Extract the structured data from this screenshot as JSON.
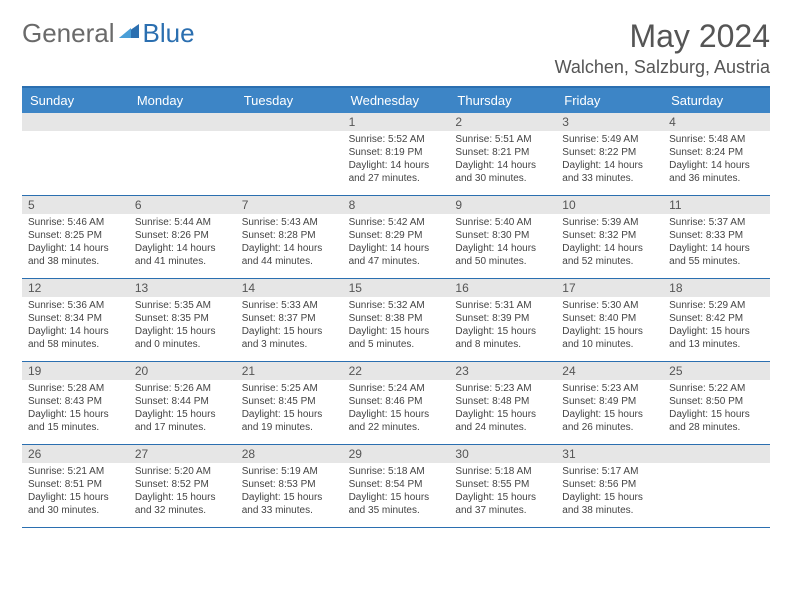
{
  "logo": {
    "general": "General",
    "blue": "Blue"
  },
  "title": "May 2024",
  "location": "Walchen, Salzburg, Austria",
  "colors": {
    "header_bg": "#3d85c6",
    "border": "#2b6fb0",
    "daynum_bg": "#e6e6e6",
    "logo_gray": "#6a6a6a",
    "logo_blue": "#2b6fb0"
  },
  "day_names": [
    "Sunday",
    "Monday",
    "Tuesday",
    "Wednesday",
    "Thursday",
    "Friday",
    "Saturday"
  ],
  "prefix": {
    "sunrise": "Sunrise: ",
    "sunset": "Sunset: ",
    "daylight": "Daylight: "
  },
  "weeks": [
    [
      {
        "n": "",
        "empty": true
      },
      {
        "n": "",
        "empty": true
      },
      {
        "n": "",
        "empty": true
      },
      {
        "n": "1",
        "sr": "5:52 AM",
        "ss": "8:19 PM",
        "dl": "14 hours and 27 minutes."
      },
      {
        "n": "2",
        "sr": "5:51 AM",
        "ss": "8:21 PM",
        "dl": "14 hours and 30 minutes."
      },
      {
        "n": "3",
        "sr": "5:49 AM",
        "ss": "8:22 PM",
        "dl": "14 hours and 33 minutes."
      },
      {
        "n": "4",
        "sr": "5:48 AM",
        "ss": "8:24 PM",
        "dl": "14 hours and 36 minutes."
      }
    ],
    [
      {
        "n": "5",
        "sr": "5:46 AM",
        "ss": "8:25 PM",
        "dl": "14 hours and 38 minutes."
      },
      {
        "n": "6",
        "sr": "5:44 AM",
        "ss": "8:26 PM",
        "dl": "14 hours and 41 minutes."
      },
      {
        "n": "7",
        "sr": "5:43 AM",
        "ss": "8:28 PM",
        "dl": "14 hours and 44 minutes."
      },
      {
        "n": "8",
        "sr": "5:42 AM",
        "ss": "8:29 PM",
        "dl": "14 hours and 47 minutes."
      },
      {
        "n": "9",
        "sr": "5:40 AM",
        "ss": "8:30 PM",
        "dl": "14 hours and 50 minutes."
      },
      {
        "n": "10",
        "sr": "5:39 AM",
        "ss": "8:32 PM",
        "dl": "14 hours and 52 minutes."
      },
      {
        "n": "11",
        "sr": "5:37 AM",
        "ss": "8:33 PM",
        "dl": "14 hours and 55 minutes."
      }
    ],
    [
      {
        "n": "12",
        "sr": "5:36 AM",
        "ss": "8:34 PM",
        "dl": "14 hours and 58 minutes."
      },
      {
        "n": "13",
        "sr": "5:35 AM",
        "ss": "8:35 PM",
        "dl": "15 hours and 0 minutes."
      },
      {
        "n": "14",
        "sr": "5:33 AM",
        "ss": "8:37 PM",
        "dl": "15 hours and 3 minutes."
      },
      {
        "n": "15",
        "sr": "5:32 AM",
        "ss": "8:38 PM",
        "dl": "15 hours and 5 minutes."
      },
      {
        "n": "16",
        "sr": "5:31 AM",
        "ss": "8:39 PM",
        "dl": "15 hours and 8 minutes."
      },
      {
        "n": "17",
        "sr": "5:30 AM",
        "ss": "8:40 PM",
        "dl": "15 hours and 10 minutes."
      },
      {
        "n": "18",
        "sr": "5:29 AM",
        "ss": "8:42 PM",
        "dl": "15 hours and 13 minutes."
      }
    ],
    [
      {
        "n": "19",
        "sr": "5:28 AM",
        "ss": "8:43 PM",
        "dl": "15 hours and 15 minutes."
      },
      {
        "n": "20",
        "sr": "5:26 AM",
        "ss": "8:44 PM",
        "dl": "15 hours and 17 minutes."
      },
      {
        "n": "21",
        "sr": "5:25 AM",
        "ss": "8:45 PM",
        "dl": "15 hours and 19 minutes."
      },
      {
        "n": "22",
        "sr": "5:24 AM",
        "ss": "8:46 PM",
        "dl": "15 hours and 22 minutes."
      },
      {
        "n": "23",
        "sr": "5:23 AM",
        "ss": "8:48 PM",
        "dl": "15 hours and 24 minutes."
      },
      {
        "n": "24",
        "sr": "5:23 AM",
        "ss": "8:49 PM",
        "dl": "15 hours and 26 minutes."
      },
      {
        "n": "25",
        "sr": "5:22 AM",
        "ss": "8:50 PM",
        "dl": "15 hours and 28 minutes."
      }
    ],
    [
      {
        "n": "26",
        "sr": "5:21 AM",
        "ss": "8:51 PM",
        "dl": "15 hours and 30 minutes."
      },
      {
        "n": "27",
        "sr": "5:20 AM",
        "ss": "8:52 PM",
        "dl": "15 hours and 32 minutes."
      },
      {
        "n": "28",
        "sr": "5:19 AM",
        "ss": "8:53 PM",
        "dl": "15 hours and 33 minutes."
      },
      {
        "n": "29",
        "sr": "5:18 AM",
        "ss": "8:54 PM",
        "dl": "15 hours and 35 minutes."
      },
      {
        "n": "30",
        "sr": "5:18 AM",
        "ss": "8:55 PM",
        "dl": "15 hours and 37 minutes."
      },
      {
        "n": "31",
        "sr": "5:17 AM",
        "ss": "8:56 PM",
        "dl": "15 hours and 38 minutes."
      },
      {
        "n": "",
        "empty": true
      }
    ]
  ]
}
